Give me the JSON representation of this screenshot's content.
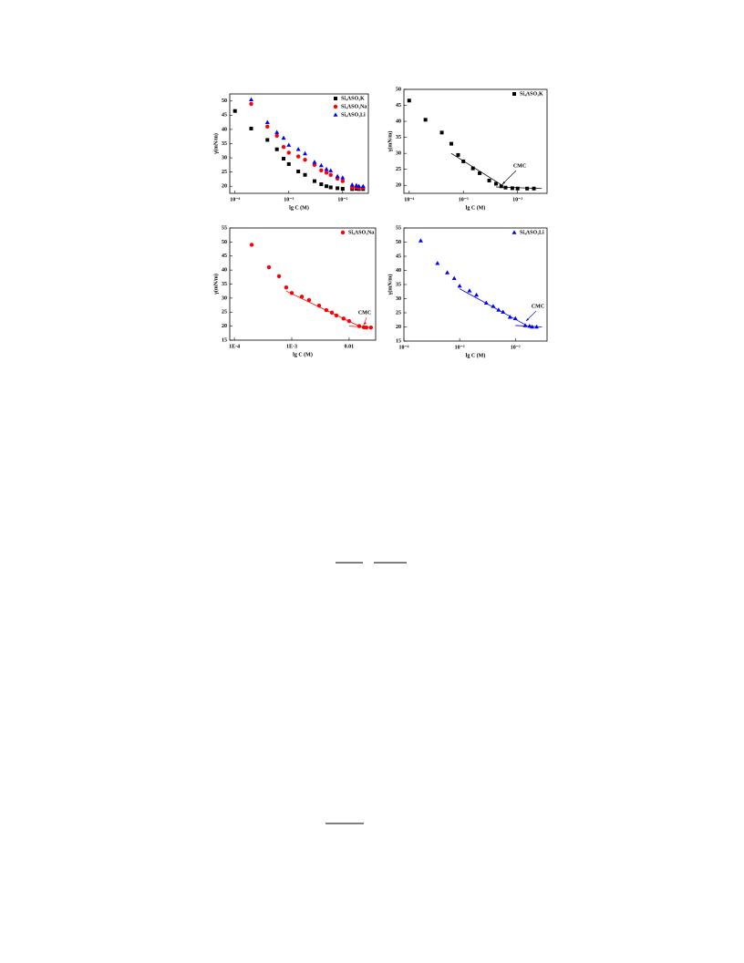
{
  "chart_data": [
    {
      "type": "scatter",
      "xlabel": "lg C (M)",
      "ylabel": "γ(mN/m)",
      "xscale": "log",
      "legend": "upper right",
      "xlim": [
        8e-05,
        0.03
      ],
      "ylim": [
        17.5,
        52.5
      ],
      "xticks": [
        {
          "value": 0.0001,
          "label": "10⁻⁴"
        },
        {
          "value": 0.001,
          "label": "10⁻³"
        },
        {
          "value": 0.01,
          "label": "10⁻²"
        }
      ],
      "yticks": [
        20,
        25,
        30,
        35,
        40,
        45,
        50
      ],
      "series": [
        {
          "name": "Si₄ASO₃K",
          "color": "#000000",
          "marker": "square",
          "x": [
            0.0001,
            0.0002,
            0.0004,
            0.0006,
            0.0008,
            0.001,
            0.0015,
            0.002,
            0.003,
            0.004,
            0.005,
            0.006,
            0.008,
            0.01,
            0.015,
            0.018,
            0.02,
            0.024
          ],
          "values": [
            46.5,
            40.3,
            36.3,
            33,
            29.7,
            27.8,
            25.2,
            24,
            21.8,
            20.7,
            20,
            19.6,
            19.3,
            19.1,
            19,
            19.1,
            19,
            19
          ]
        },
        {
          "name": "Si₄ASO₃Na",
          "color": "#ff0000",
          "marker": "circle",
          "x": [
            0.0002,
            0.0004,
            0.0006,
            0.0008,
            0.001,
            0.0015,
            0.002,
            0.003,
            0.004,
            0.005,
            0.006,
            0.008,
            0.01,
            0.015,
            0.018,
            0.02,
            0.024
          ],
          "values": [
            49,
            41,
            37.8,
            33.8,
            31.8,
            30.5,
            29.3,
            27.5,
            25.6,
            24.8,
            24,
            22.7,
            21.8,
            19.5,
            19.6,
            19.3,
            19.5
          ]
        },
        {
          "name": "Si₄ASO₃Li",
          "color": "#0000ff",
          "marker": "triangle",
          "x": [
            0.0002,
            0.0004,
            0.0006,
            0.0008,
            0.001,
            0.0015,
            0.002,
            0.003,
            0.004,
            0.005,
            0.006,
            0.008,
            0.01,
            0.015,
            0.018,
            0.02,
            0.024
          ],
          "values": [
            50.5,
            42.5,
            39,
            37,
            34.5,
            33,
            31.5,
            28.5,
            27.3,
            26,
            25.5,
            23.5,
            23,
            20.5,
            20.3,
            20,
            20
          ]
        }
      ]
    },
    {
      "type": "scatter",
      "xlabel": "lg C (M)",
      "ylabel": "γ(mN/m)",
      "xscale": "log",
      "legend": "upper right",
      "xlim": [
        8e-05,
        0.035
      ],
      "ylim": [
        17.5,
        50
      ],
      "xticks": [
        {
          "value": 0.0001,
          "label": "10⁻⁴"
        },
        {
          "value": 0.001,
          "label": "10⁻³"
        },
        {
          "value": 0.01,
          "label": "10⁻²"
        }
      ],
      "yticks": [
        20,
        25,
        30,
        35,
        40,
        45,
        50
      ],
      "series": [
        {
          "name": "Si₄ASO₃K",
          "color": "#000000",
          "marker": "square",
          "x": [
            0.0001,
            0.0002,
            0.0004,
            0.0006,
            0.0008,
            0.001,
            0.0015,
            0.002,
            0.003,
            0.004,
            0.005,
            0.006,
            0.008,
            0.01,
            0.015,
            0.02
          ],
          "values": [
            46.5,
            40.5,
            36.5,
            33,
            29.5,
            27.5,
            25.3,
            23.8,
            21.5,
            20.5,
            19.7,
            19.3,
            19.1,
            19,
            19,
            19
          ]
        }
      ],
      "fit_lines": [
        {
          "x": [
            0.0006,
            0.005
          ],
          "y": [
            30,
            20.2
          ]
        },
        {
          "x": [
            0.004,
            0.028
          ],
          "y": [
            19.5,
            19
          ]
        }
      ],
      "annotation": "CMC"
    },
    {
      "type": "scatter",
      "xlabel": "lg C (M)",
      "ylabel": "γ(mN/m)",
      "xscale": "log",
      "legend": "upper right",
      "xlim": [
        8.3e-05,
        0.029
      ],
      "ylim": [
        15,
        55
      ],
      "xticks": [
        {
          "value": 0.0001,
          "label": "1E-4"
        },
        {
          "value": 0.001,
          "label": "1E-3"
        },
        0.01
      ],
      "yticks": [
        15,
        20,
        25,
        30,
        35,
        40,
        45,
        50,
        55
      ],
      "series": [
        {
          "name": "Si₄ASO₃Na",
          "color": "#ff0000",
          "marker": "circle",
          "x": [
            0.0002,
            0.0004,
            0.0006,
            0.0008,
            0.001,
            0.0015,
            0.002,
            0.003,
            0.004,
            0.005,
            0.006,
            0.008,
            0.01,
            0.015,
            0.018,
            0.02,
            0.024
          ],
          "values": [
            49,
            41,
            37.8,
            33.8,
            31.8,
            30.5,
            29.3,
            27.3,
            25.7,
            24.8,
            23.8,
            22.7,
            21.8,
            20,
            19.6,
            19.5,
            19.5
          ]
        }
      ],
      "fit_lines": [
        {
          "x": [
            0.0008,
            0.015
          ],
          "y": [
            32.5,
            20
          ]
        },
        {
          "x": [
            0.01,
            0.025
          ],
          "y": [
            20,
            19.5
          ]
        }
      ],
      "annotation": "CMC"
    },
    {
      "type": "scatter",
      "xlabel": "lg C (M)",
      "ylabel": "γ(mN/m)",
      "xscale": "log",
      "legend": "upper right",
      "xlim": [
        0.0001,
        0.037
      ],
      "ylim": [
        15,
        55
      ],
      "xticks": [
        {
          "value": 0.0001,
          "label": "10⁻⁴"
        },
        {
          "value": 0.001,
          "label": "10⁻³"
        },
        {
          "value": 0.01,
          "label": "10⁻²"
        }
      ],
      "yticks": [
        15,
        20,
        25,
        30,
        35,
        40,
        45,
        50,
        55
      ],
      "series": [
        {
          "name": "Si₄ASO₃Li",
          "color": "#0000ff",
          "marker": "triangle",
          "x": [
            0.0002,
            0.0004,
            0.0006,
            0.0008,
            0.001,
            0.0015,
            0.002,
            0.003,
            0.004,
            0.005,
            0.006,
            0.008,
            0.01,
            0.015,
            0.018,
            0.02,
            0.024
          ],
          "values": [
            50.5,
            42.5,
            39.2,
            37.2,
            34.5,
            32.8,
            31.3,
            28.5,
            27.3,
            26,
            25.3,
            23.5,
            23,
            20.5,
            20.3,
            20,
            20
          ]
        }
      ],
      "fit_lines": [
        {
          "x": [
            0.001,
            0.016
          ],
          "y": [
            33.5,
            20.5
          ]
        },
        {
          "x": [
            0.01,
            0.03
          ],
          "y": [
            20.5,
            20
          ]
        }
      ],
      "annotation": "CMC"
    }
  ]
}
